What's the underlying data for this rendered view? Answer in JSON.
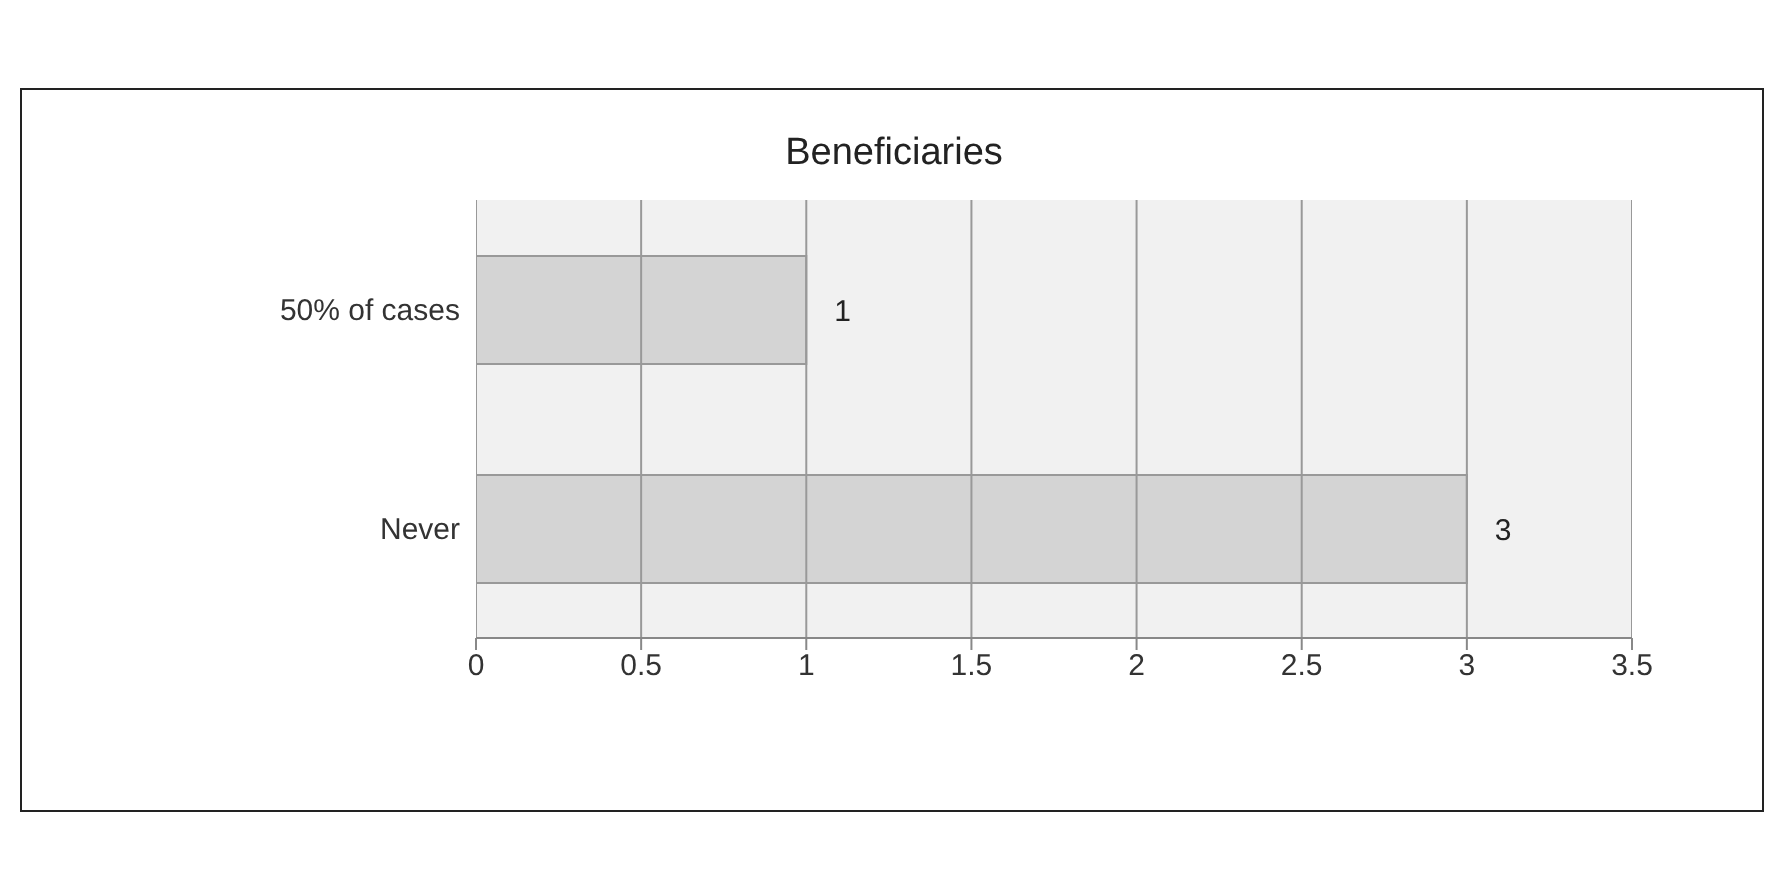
{
  "chart_data": {
    "type": "bar",
    "title": "Beneficiaries",
    "orientation": "horizontal",
    "categories": [
      "50% of cases",
      "Never"
    ],
    "values": [
      1,
      3
    ],
    "color": "#d4d4d4",
    "xlim": [
      0,
      3.5
    ],
    "xticks": [
      0,
      0.5,
      1,
      1.5,
      2,
      2.5,
      3,
      3.5
    ],
    "grid": "x",
    "data_labels": true
  }
}
